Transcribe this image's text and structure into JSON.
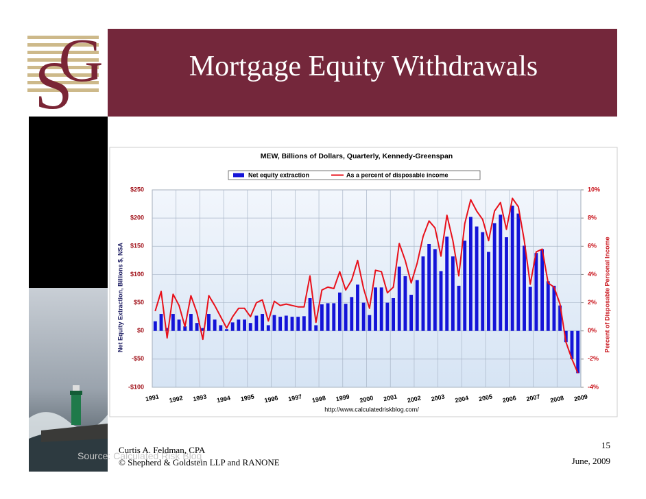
{
  "slide": {
    "title": "Mortgage Equity Withdrawals",
    "source_note": "Source: Calculated Risk Blog",
    "footer": {
      "author": "Curtis A. Feldman, CPA",
      "copyright": "© Shepherd & Goldstein LLP and RANONE",
      "page": "15",
      "date": "June, 2009"
    }
  },
  "chart_data": {
    "type": "bar",
    "title": "MEW, Billions of Dollars, Quarterly, Kennedy-Greenspan",
    "ylabel": "Net Equity Extraction, Billions $, NSA",
    "y2label": "Percent of Disposable Personal Income",
    "source": "http://www.calculatedriskblog.com/",
    "x": [
      1991,
      1991.25,
      1991.5,
      1991.75,
      1992,
      1992.25,
      1992.5,
      1992.75,
      1993,
      1993.25,
      1993.5,
      1993.75,
      1994,
      1994.25,
      1994.5,
      1994.75,
      1995,
      1995.25,
      1995.5,
      1995.75,
      1996,
      1996.25,
      1996.5,
      1996.75,
      1997,
      1997.25,
      1997.5,
      1997.75,
      1998,
      1998.25,
      1998.5,
      1998.75,
      1999,
      1999.25,
      1999.5,
      1999.75,
      2000,
      2000.25,
      2000.5,
      2000.75,
      2001,
      2001.25,
      2001.5,
      2001.75,
      2002,
      2002.25,
      2002.5,
      2002.75,
      2003,
      2003.25,
      2003.5,
      2003.75,
      2004,
      2004.25,
      2004.5,
      2004.75,
      2005,
      2005.25,
      2005.5,
      2005.75,
      2006,
      2006.25,
      2006.5,
      2006.75,
      2007,
      2007.25,
      2007.5,
      2007.75,
      2008,
      2008.25,
      2008.5,
      2008.75
    ],
    "xlim": [
      1991,
      2009
    ],
    "xticks": [
      1991,
      1992,
      1993,
      1994,
      1995,
      1996,
      1997,
      1998,
      1999,
      2000,
      2001,
      2002,
      2003,
      2004,
      2005,
      2006,
      2007,
      2008,
      2009
    ],
    "ylim": [
      -100,
      250
    ],
    "yticks": [
      {
        "value": -100,
        "label": "-$100"
      },
      {
        "value": -50,
        "label": "-$50"
      },
      {
        "value": 0,
        "label": "$0"
      },
      {
        "value": 50,
        "label": "$50"
      },
      {
        "value": 100,
        "label": "$100"
      },
      {
        "value": 150,
        "label": "$150"
      },
      {
        "value": 200,
        "label": "$200"
      },
      {
        "value": 250,
        "label": "$250"
      }
    ],
    "y2lim": [
      -4,
      10
    ],
    "y2ticks": [
      {
        "value": -4,
        "label": "-4%"
      },
      {
        "value": -2,
        "label": "-2%"
      },
      {
        "value": 0,
        "label": "0%"
      },
      {
        "value": 2,
        "label": "2%"
      },
      {
        "value": 4,
        "label": "4%"
      },
      {
        "value": 6,
        "label": "6%"
      },
      {
        "value": 8,
        "label": "8%"
      },
      {
        "value": 10,
        "label": "10%"
      }
    ],
    "grid": true,
    "legend": "top",
    "series": [
      {
        "name": "Net equity extraction",
        "color": "#1414d8",
        "type": "bar",
        "values": [
          17,
          30,
          5,
          30,
          20,
          8,
          30,
          14,
          5,
          30,
          20,
          10,
          3,
          15,
          20,
          20,
          14,
          27,
          30,
          10,
          28,
          25,
          27,
          25,
          25,
          26,
          58,
          10,
          47,
          49,
          49,
          68,
          48,
          60,
          82,
          50,
          28,
          77,
          77,
          50,
          58,
          114,
          97,
          64,
          90,
          132,
          154,
          145,
          106,
          167,
          132,
          80,
          160,
          202,
          185,
          175,
          140,
          191,
          206,
          166,
          222,
          208,
          151,
          78,
          138,
          145,
          88,
          80,
          45,
          -20,
          -50,
          -75
        ]
      },
      {
        "name": "As a percent of disposable income",
        "color": "#e8101a",
        "type": "line",
        "axis": "y2",
        "values": [
          1.4,
          2.8,
          -0.5,
          2.6,
          1.8,
          0.3,
          2.5,
          1.3,
          -0.6,
          2.5,
          1.8,
          1.0,
          0.2,
          1.0,
          1.6,
          1.6,
          1.0,
          2.0,
          2.2,
          0.7,
          2.1,
          1.8,
          1.9,
          1.8,
          1.7,
          1.7,
          3.9,
          0.6,
          2.9,
          3.1,
          3.0,
          4.2,
          2.9,
          3.6,
          5.0,
          3.0,
          1.6,
          4.3,
          4.2,
          2.7,
          3.1,
          6.2,
          5.0,
          3.4,
          4.8,
          6.7,
          7.8,
          7.3,
          5.3,
          8.2,
          6.4,
          3.9,
          7.6,
          9.3,
          8.5,
          7.9,
          6.4,
          8.5,
          9.1,
          7.2,
          9.4,
          8.8,
          6.4,
          3.3,
          5.6,
          5.8,
          3.4,
          3.1,
          1.9,
          -0.8,
          -2.0,
          -3.0
        ]
      }
    ]
  }
}
